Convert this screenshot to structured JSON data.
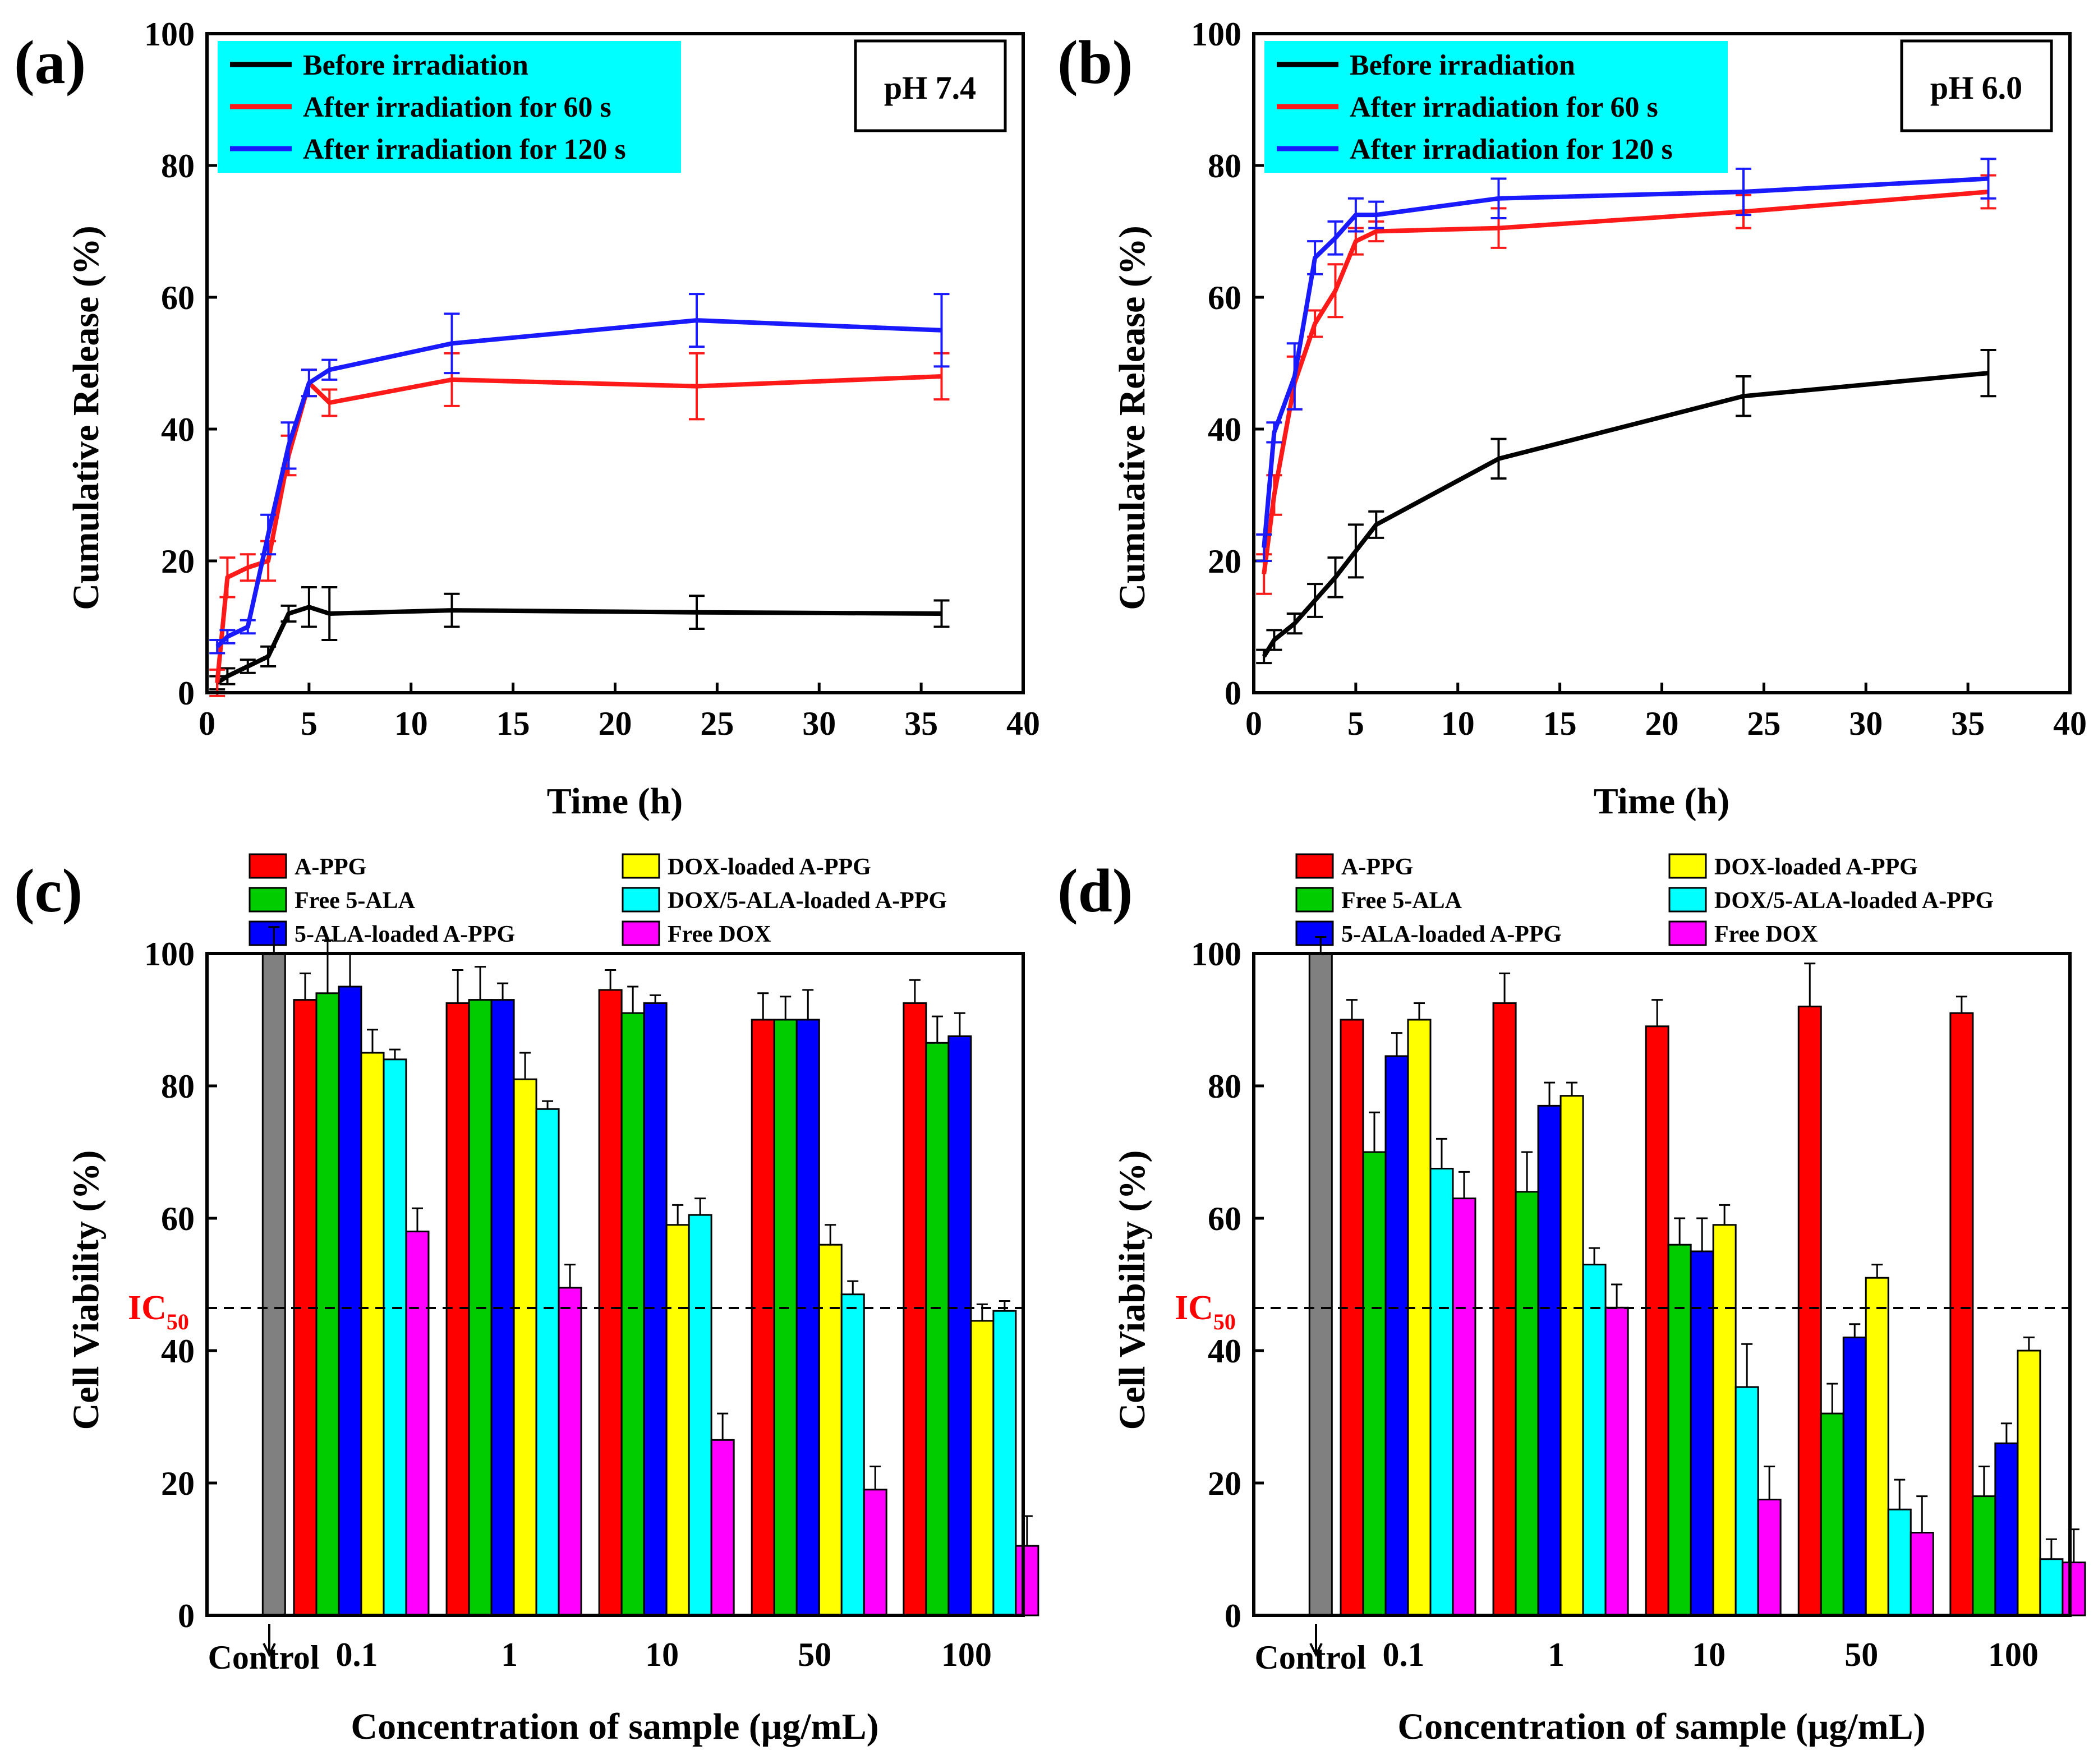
{
  "figure": {
    "panels": [
      "(a)",
      "(b)",
      "(c)",
      "(d)"
    ]
  },
  "colors": {
    "black": "#000000",
    "red": "#ff1a1a",
    "blue": "#1a1aff",
    "legend_bg": "#00ffff",
    "control": "#808080",
    "a_ppg": "#ff0000",
    "free_5ala": "#00cc00",
    "loaded_5ala": "#0000ff",
    "dox_loaded": "#ffff00",
    "dox_5ala": "#00ffff",
    "free_dox": "#ff00ff",
    "ic50": "#ff0000"
  },
  "chart_data": [
    {
      "id": "a",
      "panel": "(a)",
      "type": "line",
      "annotation": "pH 7.4",
      "xlabel": "Time (h)",
      "ylabel": "Cumulative Release (%)",
      "xlim": [
        0,
        40
      ],
      "ylim": [
        0,
        100
      ],
      "xticks": [
        "0",
        "5",
        "10",
        "15",
        "20",
        "25",
        "30",
        "35",
        "40"
      ],
      "yticks": [
        "0",
        "20",
        "40",
        "60",
        "80",
        "100"
      ],
      "series": [
        {
          "name": "Before irradiation",
          "color": "#000000",
          "x": [
            0.5,
            1,
            2,
            3,
            4,
            5,
            6,
            12,
            24,
            36
          ],
          "y": [
            1.5,
            2.5,
            4,
            5.5,
            12,
            13,
            12,
            12.5,
            12.2,
            12
          ],
          "err": [
            1,
            1.2,
            1,
            1.5,
            1.2,
            3,
            4,
            2.5,
            2.5,
            2
          ]
        },
        {
          "name": "After irradiation for 60 s",
          "color": "#ff1a1a",
          "x": [
            0.5,
            1,
            2,
            3,
            4,
            5,
            6,
            12,
            24,
            36
          ],
          "y": [
            1.5,
            17.5,
            19,
            20,
            36,
            47,
            44,
            47.5,
            46.5,
            48
          ],
          "err": [
            2,
            3,
            2,
            3,
            3,
            2,
            2,
            4,
            5,
            3.5
          ]
        },
        {
          "name": "After irradiation for 120 s",
          "color": "#1a1aff",
          "x": [
            0.5,
            1,
            2,
            3,
            4,
            5,
            6,
            12,
            24,
            36
          ],
          "y": [
            7,
            8.5,
            10,
            24,
            37.5,
            47,
            49,
            53,
            56.5,
            55
          ],
          "err": [
            1,
            1,
            1,
            3,
            3.5,
            2,
            1.5,
            4.5,
            4,
            5.5
          ]
        }
      ]
    },
    {
      "id": "b",
      "panel": "(b)",
      "type": "line",
      "annotation": "pH 6.0",
      "xlabel": "Time (h)",
      "ylabel": "Cumulative Release (%)",
      "xlim": [
        0,
        40
      ],
      "ylim": [
        0,
        100
      ],
      "xticks": [
        "0",
        "5",
        "10",
        "15",
        "20",
        "25",
        "30",
        "35",
        "40"
      ],
      "yticks": [
        "0",
        "20",
        "40",
        "60",
        "80",
        "100"
      ],
      "series": [
        {
          "name": "Before irradiation",
          "color": "#000000",
          "x": [
            0.5,
            1,
            2,
            3,
            4,
            5,
            6,
            12,
            24,
            36
          ],
          "y": [
            5.5,
            8,
            10.5,
            14,
            17.5,
            21.5,
            25.5,
            35.5,
            45,
            48.5
          ],
          "err": [
            1,
            1.5,
            1.5,
            2.5,
            3,
            4,
            2,
            3,
            3,
            3.5
          ]
        },
        {
          "name": "After irradiation for 60 s",
          "color": "#ff1a1a",
          "x": [
            0.5,
            1,
            2,
            3,
            4,
            5,
            6,
            12,
            24,
            36
          ],
          "y": [
            18,
            30,
            47,
            56,
            61,
            68.5,
            70,
            70.5,
            73,
            76
          ],
          "err": [
            3,
            3,
            4,
            2,
            4,
            2,
            1.5,
            3,
            2.5,
            2.5
          ]
        },
        {
          "name": "After irradiation for 120 s",
          "color": "#1a1aff",
          "x": [
            0.5,
            1,
            2,
            3,
            4,
            5,
            6,
            12,
            24,
            36
          ],
          "y": [
            22,
            39.5,
            48,
            66,
            69,
            72.5,
            72.5,
            75,
            76,
            78
          ],
          "err": [
            2,
            1.5,
            5,
            2.5,
            2.5,
            2.5,
            2,
            3,
            3.5,
            3
          ]
        }
      ]
    },
    {
      "id": "c",
      "panel": "(c)",
      "type": "bar",
      "xlabel": "Concentration of sample (μg/mL)",
      "ylabel": "Cell Viability (%)",
      "ylim": [
        0,
        100
      ],
      "yticks": [
        "0",
        "20",
        "40",
        "60",
        "80",
        "100"
      ],
      "ic50_label": "IC",
      "ic50_sub": "50",
      "ic50_value": 50,
      "control_label": "Control",
      "control": {
        "value": 100,
        "err": 4
      },
      "categories": [
        "0.1",
        "1",
        "10",
        "50",
        "100"
      ],
      "series": [
        {
          "name": "A-PPG",
          "color": "#ff0000",
          "values": [
            93,
            92.5,
            94.5,
            90,
            92.5
          ],
          "err": [
            4,
            5,
            3,
            4,
            3.5
          ]
        },
        {
          "name": "Free 5-ALA",
          "color": "#00cc00",
          "values": [
            94,
            93,
            91,
            90,
            86.5
          ],
          "err": [
            8,
            5,
            4,
            3.5,
            4
          ]
        },
        {
          "name": "5-ALA-loaded A-PPG",
          "color": "#0000ff",
          "values": [
            95,
            93,
            92.5,
            90,
            87.5
          ],
          "err": [
            5,
            2.5,
            1.2,
            4.5,
            3.5
          ]
        },
        {
          "name": "DOX-loaded A-PPG",
          "color": "#ffff00",
          "values": [
            85,
            81,
            59,
            56,
            44.5
          ],
          "err": [
            3.5,
            4,
            3,
            3,
            2.5
          ]
        },
        {
          "name": "DOX/5-ALA-loaded A-PPG",
          "color": "#00ffff",
          "values": [
            84,
            76.5,
            60.5,
            48.5,
            46
          ],
          "err": [
            1.5,
            1.2,
            2.5,
            2,
            1.5
          ]
        },
        {
          "name": "Free DOX",
          "color": "#ff00ff",
          "values": [
            58,
            49.5,
            26.5,
            19,
            10.5
          ],
          "err": [
            3.5,
            3.5,
            4,
            3.5,
            4.5
          ]
        }
      ]
    },
    {
      "id": "d",
      "panel": "(d)",
      "type": "bar",
      "xlabel": "Concentration of sample (μg/mL)",
      "ylabel": "Cell Viability (%)",
      "ylim": [
        0,
        100
      ],
      "yticks": [
        "0",
        "20",
        "40",
        "60",
        "80",
        "100"
      ],
      "ic50_label": "IC",
      "ic50_sub": "50",
      "ic50_value": 50,
      "control_label": "Control",
      "control": {
        "value": 100,
        "err": 2.5
      },
      "categories": [
        "0.1",
        "1",
        "10",
        "50",
        "100"
      ],
      "series": [
        {
          "name": "A-PPG",
          "color": "#ff0000",
          "values": [
            90,
            92.5,
            89,
            92,
            91
          ],
          "err": [
            3,
            4.5,
            4,
            6.5,
            2.5
          ]
        },
        {
          "name": "Free 5-ALA",
          "color": "#00cc00",
          "values": [
            70,
            64,
            56,
            30.5,
            18
          ],
          "err": [
            6,
            6,
            4,
            4.5,
            4.5
          ]
        },
        {
          "name": "5-ALA-loaded A-PPG",
          "color": "#0000ff",
          "values": [
            84.5,
            77,
            55,
            42,
            26
          ],
          "err": [
            3.5,
            3.5,
            5,
            2,
            3
          ]
        },
        {
          "name": "DOX-loaded A-PPG",
          "color": "#ffff00",
          "values": [
            90,
            78.5,
            59,
            51,
            40
          ],
          "err": [
            2.5,
            2,
            3,
            2,
            2
          ]
        },
        {
          "name": "DOX/5-ALA-loaded A-PPG",
          "color": "#00ffff",
          "values": [
            67.5,
            53,
            34.5,
            16,
            8.5
          ],
          "err": [
            4.5,
            2.5,
            6.5,
            4.5,
            3
          ]
        },
        {
          "name": "Free DOX",
          "color": "#ff00ff",
          "values": [
            63,
            46.5,
            17.5,
            12.5,
            8
          ],
          "err": [
            4,
            3.5,
            5,
            5.5,
            5
          ]
        }
      ]
    }
  ]
}
